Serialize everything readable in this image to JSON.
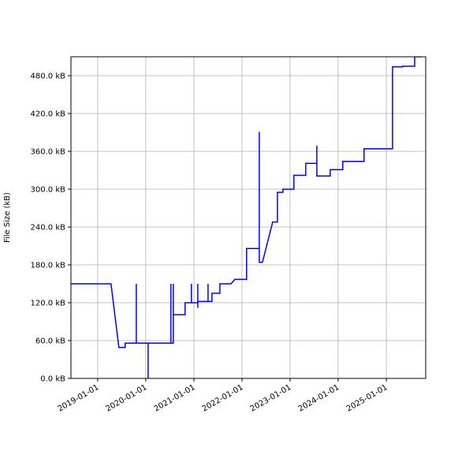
{
  "chart_data": {
    "type": "line",
    "title": "",
    "xlabel": "",
    "ylabel": "File Size (kB)",
    "xlim": [
      "2018-06-12",
      "2025-10-27"
    ],
    "ylim": [
      0,
      510
    ],
    "grid": true,
    "line_color": "#0000ff",
    "x_ticks": [
      "2019-01-01",
      "2020-01-01",
      "2021-01-01",
      "2022-01-01",
      "2023-01-01",
      "2024-01-01",
      "2025-01-01"
    ],
    "y_ticks": [
      0,
      60,
      120,
      180,
      240,
      300,
      360,
      420,
      480
    ],
    "y_tick_labels": [
      "0.0 kB",
      "60.0 kB",
      "120.0 kB",
      "180.0 kB",
      "240.0 kB",
      "300.0 kB",
      "360.0 kB",
      "420.0 kB",
      "480.0 kB"
    ],
    "series": [
      {
        "points": [
          [
            "2018-06-12",
            150
          ],
          [
            "2019-04-12",
            150
          ],
          [
            "2019-06-11",
            49
          ],
          [
            "2019-07-29",
            49
          ],
          [
            "2019-07-29",
            56
          ],
          [
            "2019-10-21",
            56
          ],
          [
            "2019-10-21",
            150
          ],
          [
            "2019-10-21",
            56
          ],
          [
            "2020-01-19",
            56
          ],
          [
            "2020-01-19",
            0
          ],
          [
            "2020-01-19",
            56
          ],
          [
            "2020-07-10",
            56
          ],
          [
            "2020-07-10",
            150
          ],
          [
            "2020-07-10",
            56
          ],
          [
            "2020-07-28",
            56
          ],
          [
            "2020-07-28",
            150
          ],
          [
            "2020-07-28",
            101
          ],
          [
            "2020-10-26",
            101
          ],
          [
            "2020-10-26",
            120
          ],
          [
            "2020-12-13",
            120
          ],
          [
            "2020-12-13",
            150
          ],
          [
            "2020-12-13",
            120
          ],
          [
            "2021-01-30",
            120
          ],
          [
            "2021-01-30",
            150
          ],
          [
            "2021-01-30",
            112
          ],
          [
            "2021-01-30",
            122
          ],
          [
            "2021-04-18",
            122
          ],
          [
            "2021-04-18",
            150
          ],
          [
            "2021-04-18",
            122
          ],
          [
            "2021-05-18",
            122
          ],
          [
            "2021-05-18",
            135
          ],
          [
            "2021-07-17",
            135
          ],
          [
            "2021-07-17",
            150
          ],
          [
            "2021-10-09",
            150
          ],
          [
            "2021-11-07",
            157
          ],
          [
            "2022-02-05",
            157
          ],
          [
            "2022-02-05",
            206
          ],
          [
            "2022-05-12",
            206
          ],
          [
            "2022-05-12",
            391
          ],
          [
            "2022-05-12",
            184
          ],
          [
            "2022-06-05",
            184
          ],
          [
            "2022-08-22",
            248
          ],
          [
            "2022-09-27",
            248
          ],
          [
            "2022-09-27",
            295
          ],
          [
            "2022-11-07",
            295
          ],
          [
            "2022-11-07",
            300
          ],
          [
            "2023-01-30",
            300
          ],
          [
            "2023-01-30",
            322
          ],
          [
            "2023-04-30",
            322
          ],
          [
            "2023-04-30",
            341
          ],
          [
            "2023-07-23",
            341
          ],
          [
            "2023-07-23",
            369
          ],
          [
            "2023-07-23",
            321
          ],
          [
            "2023-11-02",
            321
          ],
          [
            "2023-11-02",
            331
          ],
          [
            "2024-02-05",
            331
          ],
          [
            "2024-02-05",
            344
          ],
          [
            "2024-07-16",
            344
          ],
          [
            "2024-07-16",
            364
          ],
          [
            "2025-02-17",
            364
          ],
          [
            "2025-02-17",
            494
          ],
          [
            "2025-05-05",
            494
          ],
          [
            "2025-05-05",
            495
          ],
          [
            "2025-08-04",
            495
          ],
          [
            "2025-08-04",
            510
          ],
          [
            "2025-09-27",
            510
          ]
        ]
      }
    ]
  }
}
